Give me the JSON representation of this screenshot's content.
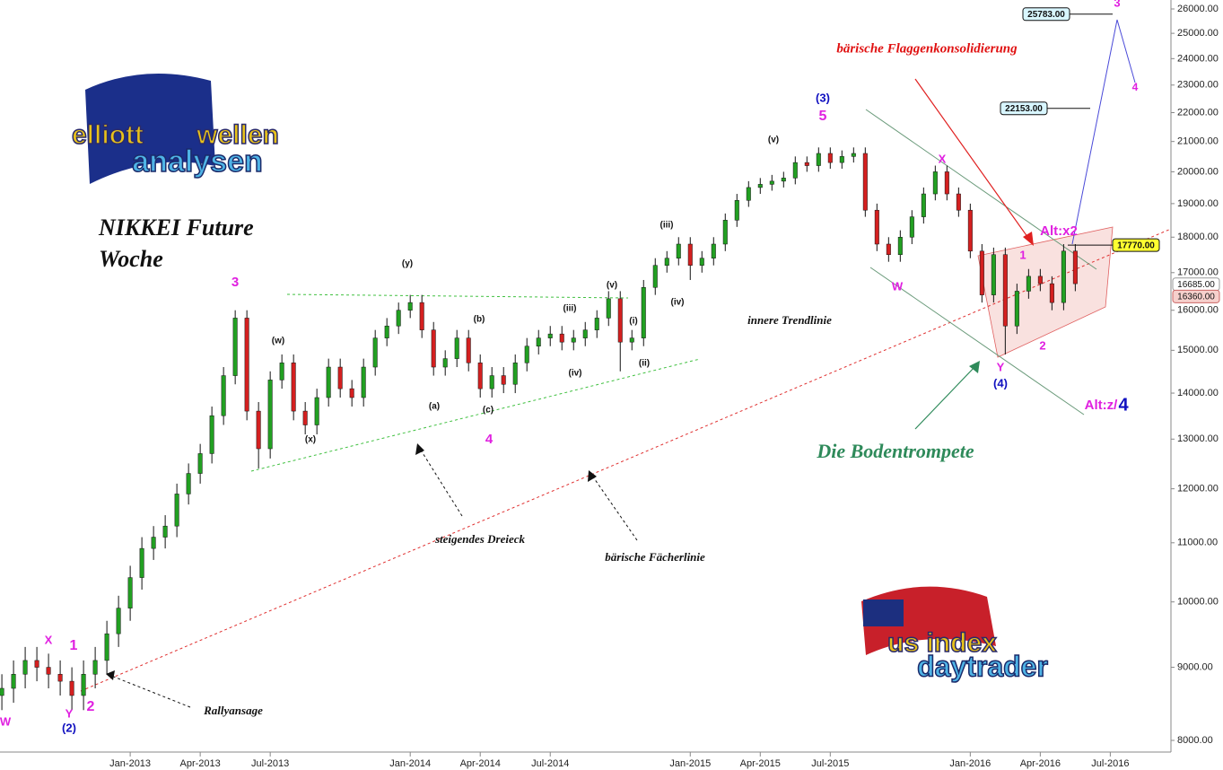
{
  "chart_data": {
    "type": "candlestick",
    "title": "NIKKEI Future",
    "subtitle": "Woche",
    "log_scale": true,
    "up_color": "#22a022",
    "down_color": "#d42020",
    "wick_color": "#111111",
    "xlim": [
      -5.58,
      44.6
    ],
    "xticks": [
      {
        "value": 0,
        "label": "Jan-2013"
      },
      {
        "value": 3,
        "label": "Apr-2013"
      },
      {
        "value": 6,
        "label": "Jul-2013"
      },
      {
        "value": 12,
        "label": "Jan-2014"
      },
      {
        "value": 15,
        "label": "Apr-2014"
      },
      {
        "value": 18,
        "label": "Jul-2014"
      },
      {
        "value": 24,
        "label": "Jan-2015"
      },
      {
        "value": 27,
        "label": "Apr-2015"
      },
      {
        "value": 30,
        "label": "Jul-2015"
      },
      {
        "value": 36,
        "label": "Jan-2016"
      },
      {
        "value": 39,
        "label": "Apr-2016"
      },
      {
        "value": 42,
        "label": "Jul-2016"
      }
    ],
    "ylim": [
      8000,
      26000
    ],
    "yticks": [
      {
        "value": 8000,
        "label": "8000.00"
      },
      {
        "value": 9000,
        "label": "9000.00"
      },
      {
        "value": 10000,
        "label": "10000.00"
      },
      {
        "value": 11000,
        "label": "11000.00"
      },
      {
        "value": 12000,
        "label": "12000.00"
      },
      {
        "value": 13000,
        "label": "13000.00"
      },
      {
        "value": 14000,
        "label": "14000.00"
      },
      {
        "value": 15000,
        "label": "15000.00"
      },
      {
        "value": 16000,
        "label": "16000.00"
      },
      {
        "value": 17000,
        "label": "17000.00"
      },
      {
        "value": 18000,
        "label": "18000.00"
      },
      {
        "value": 19000,
        "label": "19000.00"
      },
      {
        "value": 20000,
        "label": "20000.00"
      },
      {
        "value": 21000,
        "label": "21000.00"
      },
      {
        "value": 22000,
        "label": "22000.00"
      },
      {
        "value": 23000,
        "label": "23000.00"
      },
      {
        "value": 24000,
        "label": "24000.00"
      },
      {
        "value": 25000,
        "label": "25000.00"
      },
      {
        "value": 26000,
        "label": "26000.00"
      }
    ],
    "x": [
      -5.5,
      -5,
      -4.5,
      -4,
      -3.5,
      -3,
      -2.5,
      -2,
      -1.5,
      -1,
      -0.5,
      0,
      0.5,
      1,
      1.5,
      2,
      2.5,
      3,
      3.5,
      4,
      4.5,
      5,
      5.5,
      6,
      6.5,
      7,
      7.5,
      8,
      8.5,
      9,
      9.5,
      10,
      10.5,
      11,
      11.5,
      12,
      12.5,
      13,
      13.5,
      14,
      14.5,
      15,
      15.5,
      16,
      16.5,
      17,
      17.5,
      18,
      18.5,
      19,
      19.5,
      20,
      20.5,
      21,
      21.5,
      22,
      22.5,
      23,
      23.5,
      24,
      24.5,
      25,
      25.5,
      26,
      26.5,
      27,
      27.5,
      28,
      28.5,
      29,
      29.5,
      30,
      30.5,
      31,
      31.5,
      32,
      32.5,
      33,
      33.5,
      34,
      34.5,
      35,
      35.5,
      36,
      36.5,
      37,
      37.5,
      38,
      38.5,
      39,
      39.5,
      40,
      40.5
    ],
    "open": [
      8600,
      8700,
      8900,
      9100,
      9000,
      8900,
      8800,
      8600,
      8900,
      9100,
      9500,
      9900,
      10400,
      10900,
      11100,
      11300,
      11900,
      12300,
      12700,
      13500,
      14400,
      15800,
      13600,
      12800,
      14300,
      14700,
      13600,
      13300,
      13900,
      14600,
      14100,
      13900,
      14600,
      15300,
      15600,
      16000,
      16200,
      15500,
      14600,
      14800,
      15300,
      14700,
      14100,
      14400,
      14200,
      14700,
      15100,
      15300,
      15400,
      15200,
      15300,
      15500,
      15800,
      16300,
      15200,
      15300,
      16600,
      17200,
      17400,
      17800,
      17200,
      17400,
      17800,
      18500,
      19100,
      19500,
      19600,
      19700,
      19800,
      20300,
      20200,
      20600,
      20300,
      20500,
      20600,
      18800,
      17800,
      17500,
      18000,
      18600,
      19300,
      20000,
      19300,
      18800,
      17600,
      16400,
      17500,
      15600,
      16500,
      16900,
      16700,
      16200,
      17600
    ],
    "high": [
      8900,
      9100,
      9300,
      9300,
      9200,
      9100,
      9000,
      9100,
      9300,
      9700,
      10100,
      10600,
      11100,
      11300,
      11500,
      12100,
      12500,
      12900,
      13700,
      14600,
      16000,
      16000,
      13800,
      14500,
      14900,
      14900,
      13800,
      14100,
      14800,
      14800,
      14300,
      14800,
      15500,
      15800,
      16200,
      16400,
      16400,
      15700,
      15000,
      15500,
      15500,
      14900,
      14600,
      14600,
      14900,
      15300,
      15500,
      15600,
      15600,
      15500,
      15700,
      16000,
      16500,
      16500,
      15500,
      16800,
      17400,
      17600,
      18000,
      18000,
      17600,
      18000,
      18700,
      19300,
      19700,
      19800,
      19900,
      20000,
      20500,
      20500,
      20800,
      20800,
      20700,
      20800,
      20800,
      19000,
      18000,
      18200,
      18800,
      19500,
      20200,
      20200,
      19500,
      19000,
      17800,
      17700,
      17700,
      16700,
      17100,
      17100,
      16900,
      17800,
      17800
    ],
    "low": [
      8400,
      8500,
      8700,
      8800,
      8700,
      8600,
      8400,
      8400,
      8700,
      8900,
      9300,
      9700,
      10200,
      10700,
      10900,
      11100,
      11700,
      12100,
      12500,
      13300,
      14200,
      13400,
      12400,
      12600,
      14100,
      13400,
      13100,
      13100,
      13700,
      13900,
      13700,
      13700,
      14400,
      15100,
      15400,
      15800,
      15300,
      14400,
      14400,
      14600,
      14500,
      13900,
      13900,
      14000,
      14000,
      14500,
      14900,
      15100,
      15000,
      15000,
      15100,
      15300,
      15600,
      14500,
      15000,
      15100,
      16400,
      17000,
      17200,
      16800,
      17000,
      17200,
      17600,
      18300,
      18900,
      19300,
      19400,
      19500,
      19600,
      20000,
      20000,
      20100,
      20100,
      20300,
      18600,
      17600,
      17300,
      17300,
      17800,
      18400,
      19100,
      19100,
      18600,
      17400,
      16200,
      16200,
      14900,
      15400,
      16300,
      16500,
      16000,
      16000,
      16500
    ],
    "close": [
      8700,
      8900,
      9100,
      9000,
      8900,
      8800,
      8600,
      8900,
      9100,
      9500,
      9900,
      10400,
      10900,
      11100,
      11300,
      11900,
      12300,
      12700,
      13500,
      14400,
      15800,
      13600,
      12800,
      14300,
      14700,
      13600,
      13300,
      13900,
      14600,
      14100,
      13900,
      14600,
      15300,
      15600,
      16000,
      16200,
      15500,
      14600,
      14800,
      15300,
      14700,
      14100,
      14400,
      14200,
      14700,
      15100,
      15300,
      15400,
      15200,
      15300,
      15500,
      15800,
      16300,
      15200,
      15300,
      16600,
      17200,
      17400,
      17800,
      17200,
      17400,
      17800,
      18500,
      19100,
      19500,
      19600,
      19700,
      19800,
      20300,
      20200,
      20600,
      20300,
      20500,
      20600,
      18800,
      17800,
      17500,
      18000,
      18600,
      19300,
      20000,
      19300,
      18800,
      17600,
      16400,
      17500,
      15600,
      16500,
      16900,
      16700,
      16200,
      17600,
      16700
    ],
    "price_labels": [
      {
        "value": 25783,
        "label": "25783.00"
      },
      {
        "value": 22153,
        "label": "22153.00"
      },
      {
        "value": 17770,
        "label": "17770.00"
      },
      {
        "value": 16685,
        "label": "16685.00"
      },
      {
        "value": 16360,
        "label": "16360.00"
      }
    ],
    "annotations": [
      "bärische Flaggenkonsolidierung",
      "Die Bodentrompete",
      "steigendes Dreieck",
      "bärische Fächerlinie",
      "innere Trendlinie",
      "Rallyansage",
      "Alt:x2",
      "Alt:z/",
      "4",
      "(3)",
      "5",
      "3",
      "4",
      "(4)",
      "Y",
      "W",
      "X",
      "1",
      "2",
      "1",
      "2",
      "(2)",
      "Y",
      "X",
      "W",
      "3",
      "4",
      "(w)",
      "(x)",
      "(y)",
      "(a)",
      "(b)",
      "(c)",
      "(iii)",
      "(iv)",
      "(v)",
      "(i)",
      "(ii)",
      "(iii)",
      "(iv)",
      "(v)"
    ],
    "logos": [
      "elliott",
      "wellen",
      "analysen",
      "us index",
      "daytrader"
    ]
  }
}
